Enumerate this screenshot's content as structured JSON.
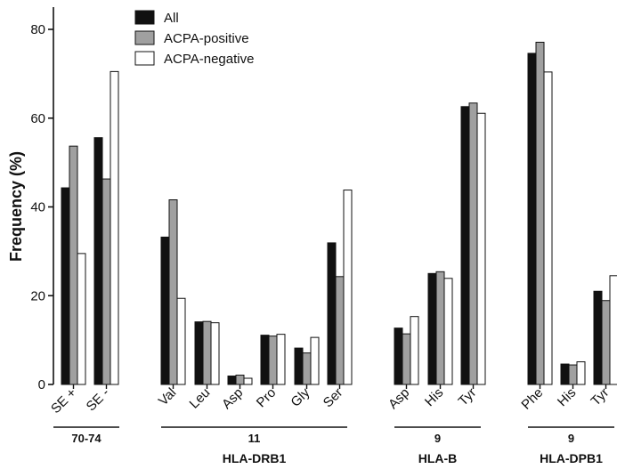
{
  "chart_data": {
    "type": "bar",
    "ylabel": "Frequency  (%)",
    "ylim": [
      0,
      85
    ],
    "yticks": [
      "0",
      "20",
      "40",
      "60",
      "80"
    ],
    "grid": false,
    "legend_position": "top-left",
    "series": [
      {
        "name": "All",
        "color": "#111111"
      },
      {
        "name": "ACPA-positive",
        "color": "#a0a0a0"
      },
      {
        "name": "ACPA-negative",
        "color": "#ffffff"
      }
    ],
    "categories": [
      "SE +",
      "SE -",
      "Val",
      "Leu",
      "Asp",
      "Pro",
      "Gly",
      "Ser",
      "Asp",
      "His",
      "Tyr",
      "Phe",
      "His",
      "Tyr"
    ],
    "values": [
      [
        44.3,
        53.7,
        29.5
      ],
      [
        55.6,
        46.3,
        70.5
      ],
      [
        33.2,
        41.6,
        19.4
      ],
      [
        14.1,
        14.2,
        13.9
      ],
      [
        1.9,
        2.1,
        1.4
      ],
      [
        11.1,
        10.9,
        11.3
      ],
      [
        8.2,
        7.1,
        10.6
      ],
      [
        31.9,
        24.3,
        43.8
      ],
      [
        12.7,
        11.4,
        15.3
      ],
      [
        25.0,
        25.4,
        23.9
      ],
      [
        62.6,
        63.4,
        61.1
      ],
      [
        74.6,
        77.1,
        70.4
      ],
      [
        4.6,
        4.4,
        5.1
      ],
      [
        21.0,
        18.9,
        24.5
      ]
    ],
    "groups": [
      {
        "position": "70-74",
        "locus": ""
      },
      {
        "position": "11",
        "locus": "HLA-DRB1"
      },
      {
        "position": "9",
        "locus": "HLA-B"
      },
      {
        "position": "9",
        "locus": "HLA-DPB1"
      }
    ]
  }
}
